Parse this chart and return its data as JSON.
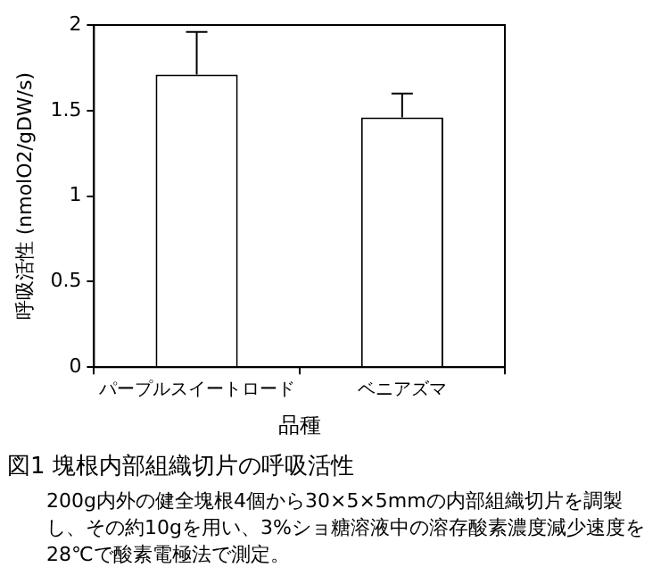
{
  "chart_data": {
    "type": "bar",
    "title": "図1  塊根内部組織切片の呼吸活性",
    "annotations": [
      "200g内外の健全塊根4個から30×5×5mmの内部組織切片を調製し、その約10gを用い、3%ショ糖溶液中の溶存酸素濃度減少速度を28℃で酸素電極法で測定。"
    ],
    "xlabel": "品種",
    "ylabel": "呼吸活性 (nmolO2/gDW/s)",
    "categories": [
      "パープルスイートロード",
      "ベニアズマ"
    ],
    "values": [
      1.71,
      1.46
    ],
    "color": "#ffffff",
    "errors": [
      [
        1.71,
        1.96
      ],
      [
        1.46,
        1.6
      ]
    ],
    "ylim": [
      0,
      2
    ],
    "yticks": [
      0,
      {
        "value": 0.5,
        "label": "0.5"
      },
      1,
      {
        "value": 1.5,
        "label": "1.5"
      },
      2
    ],
    "grid": false,
    "legend": false
  }
}
